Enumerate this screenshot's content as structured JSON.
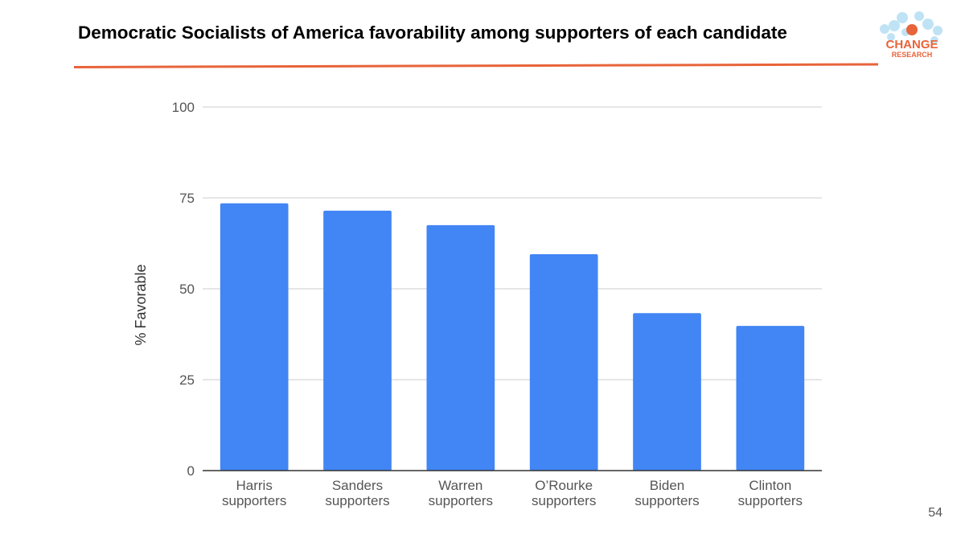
{
  "slide": {
    "title": "Democratic Socialists of America favorability among supporters of each candidate",
    "page_number": "54",
    "rule_color": "#e8643a"
  },
  "logo": {
    "line1": "CHANGE",
    "line2": "RESEARCH",
    "text_color": "#e8643a",
    "bubble_color": "#bfe3f5",
    "dot_color": "#e8643a"
  },
  "chart_data": {
    "type": "bar",
    "categories": [
      [
        "Harris",
        "supporters"
      ],
      [
        "Sanders",
        "supporters"
      ],
      [
        "Warren",
        "supporters"
      ],
      [
        "O’Rourke",
        "supporters"
      ],
      [
        "Biden",
        "supporters"
      ],
      [
        "Clinton",
        "supporters"
      ]
    ],
    "values": [
      73.5,
      71.5,
      67.5,
      59.5,
      43.3,
      39.8
    ],
    "ylabel": "% Favorable",
    "xlabel": "",
    "ylim": [
      0,
      100
    ],
    "yticks": [
      0,
      25,
      50,
      75,
      100
    ],
    "grid": true,
    "bar_color": "#4285f4",
    "grid_color": "#cccccc",
    "axis_color": "#333333",
    "tick_label_color": "#555555"
  }
}
